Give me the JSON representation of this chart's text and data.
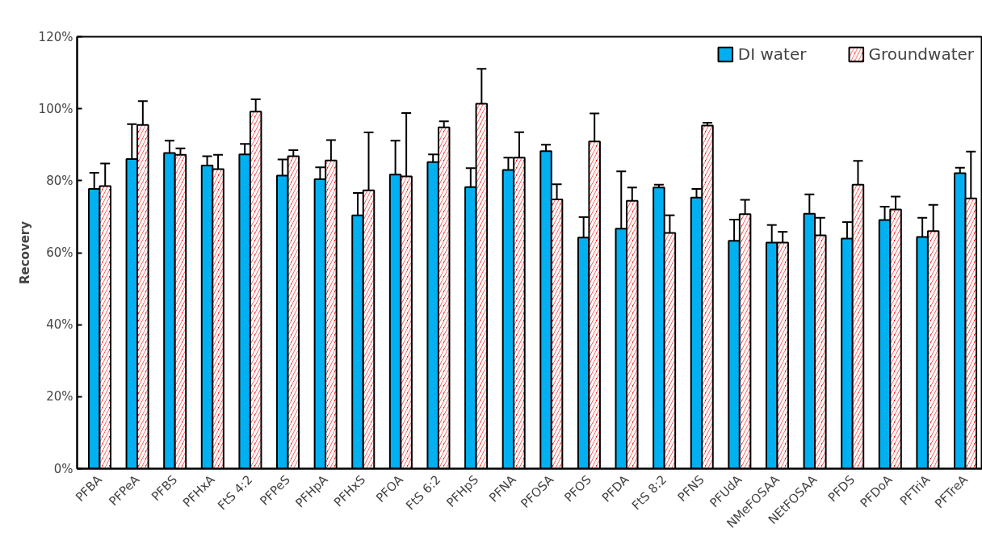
{
  "chart_data": {
    "type": "bar",
    "ylabel": "Recovery",
    "categories": [
      "PFBA",
      "PFPeA",
      "PFBS",
      "PFHxA",
      "FtS 4:2",
      "PFPeS",
      "PFHpA",
      "PFHxS",
      "PFOA",
      "FtS 6:2",
      "PFHpS",
      "PFNA",
      "PFOSA",
      "PFOS",
      "PFDA",
      "FtS 8:2",
      "PFNS",
      "PFUdA",
      "NMeFOSAA",
      "NEtFOSAA",
      "PFDS",
      "PFDoA",
      "PFTriA",
      "PFTreA"
    ],
    "series": [
      {
        "name": "DI water",
        "color": "#00b0f0",
        "values": [
          77.7,
          86,
          87.7,
          84.2,
          87.3,
          81.4,
          80.4,
          70.4,
          81.7,
          85.2,
          78.2,
          83,
          88.2,
          64.2,
          66.7,
          78.1,
          75.3,
          63.3,
          62.8,
          70.8,
          63.9,
          69.1,
          64.4,
          82.1
        ],
        "errors": [
          4.5,
          9.7,
          3.4,
          2.6,
          2.9,
          4.5,
          3.3,
          6.2,
          9.4,
          2.1,
          5.3,
          3.4,
          1.8,
          5.7,
          15.9,
          0.8,
          2.4,
          5.9,
          4.9,
          5.4,
          4.6,
          3.7,
          5.3,
          1.5
        ]
      },
      {
        "name": "Groundwater",
        "color": "#ff0000",
        "values": [
          78.5,
          95.5,
          87.2,
          83.2,
          99.2,
          86.8,
          85.6,
          77.3,
          81.2,
          94.8,
          101.4,
          86.4,
          74.8,
          90.9,
          74.4,
          65.5,
          95.3,
          70.7,
          62.8,
          64.8,
          78.9,
          72,
          66,
          75.1
        ],
        "errors": [
          6.3,
          6.6,
          1.8,
          4,
          3.4,
          1.7,
          5.7,
          16.1,
          17.6,
          1.7,
          9.7,
          7.1,
          4.2,
          7.8,
          3.7,
          4.9,
          0.8,
          4,
          3,
          4.9,
          6.6,
          3.6,
          7.3,
          13
        ]
      }
    ],
    "ylim": [
      0,
      120
    ],
    "yticks": [
      {
        "value": 0,
        "label": "0%"
      },
      {
        "value": 20,
        "label": "20%"
      },
      {
        "value": 40,
        "label": "40%"
      },
      {
        "value": 60,
        "label": "60%"
      },
      {
        "value": 80,
        "label": "80%"
      },
      {
        "value": 100,
        "label": "100%"
      },
      {
        "value": 120,
        "label": "120%"
      }
    ],
    "grid": false,
    "legend": "top right"
  }
}
